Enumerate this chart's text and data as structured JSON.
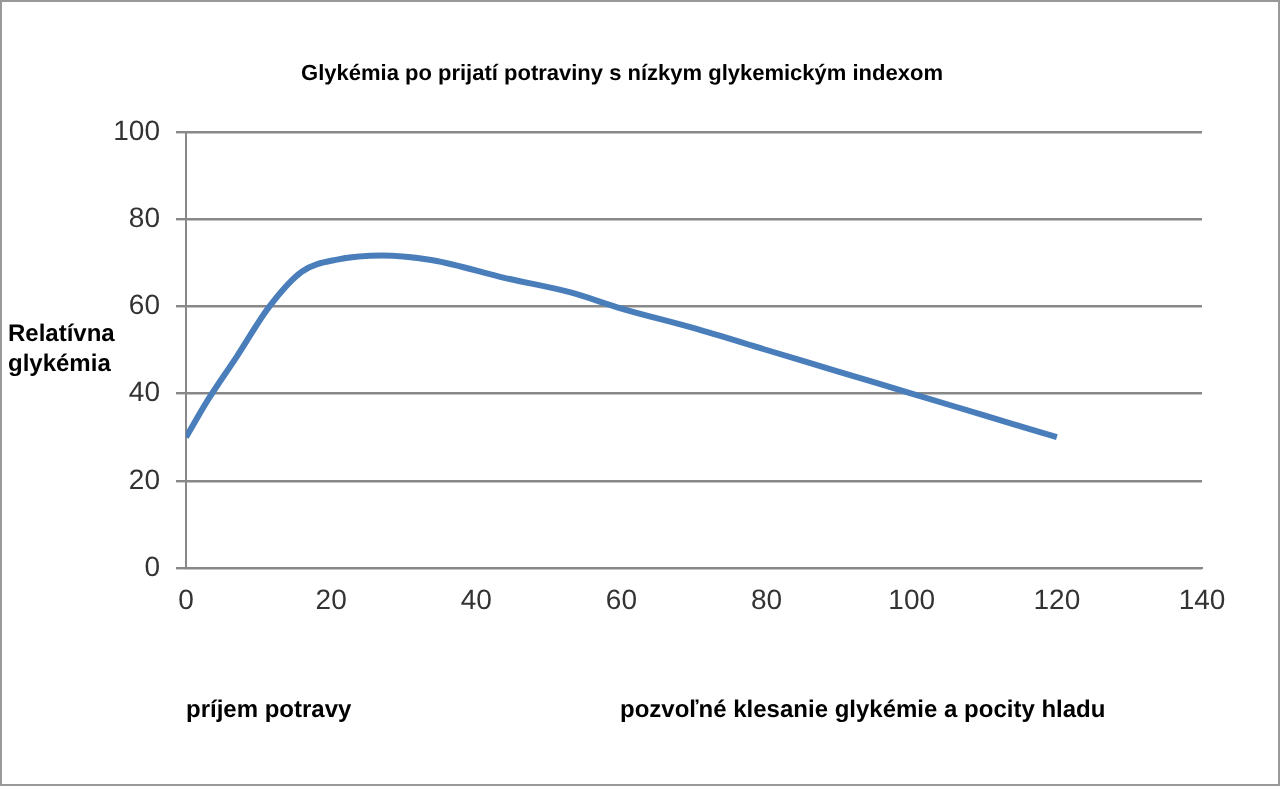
{
  "chart_data": {
    "type": "line",
    "title": "Glykémia po prijatí potraviny s nízkym glykemickým indexom",
    "ylabel": "Relatívna glykémia",
    "annotations": [
      "príjem potravy",
      "pozvoľné klesanie glykémie a pocity hladu"
    ],
    "x": [
      0,
      3,
      7,
      11.5,
      16,
      21,
      27,
      34,
      44,
      53,
      60,
      70,
      80,
      90,
      100,
      110,
      120
    ],
    "series": [
      {
        "color": "#4a7ebb",
        "values": [
          30,
          38.5,
          48.5,
          60,
          68,
          70.8,
          71.7,
          70.6,
          66.5,
          63.2,
          59.5,
          55,
          50,
          45,
          40,
          35,
          30
        ]
      }
    ],
    "xlim": [
      0,
      140
    ],
    "xticks": [
      0,
      20,
      40,
      60,
      80,
      100,
      120,
      140
    ],
    "ylim": [
      0,
      100
    ],
    "yticks": [
      0,
      20,
      40,
      60,
      80,
      100
    ],
    "grid": "y",
    "legend": false,
    "marker": "none",
    "line_style": "solid"
  }
}
